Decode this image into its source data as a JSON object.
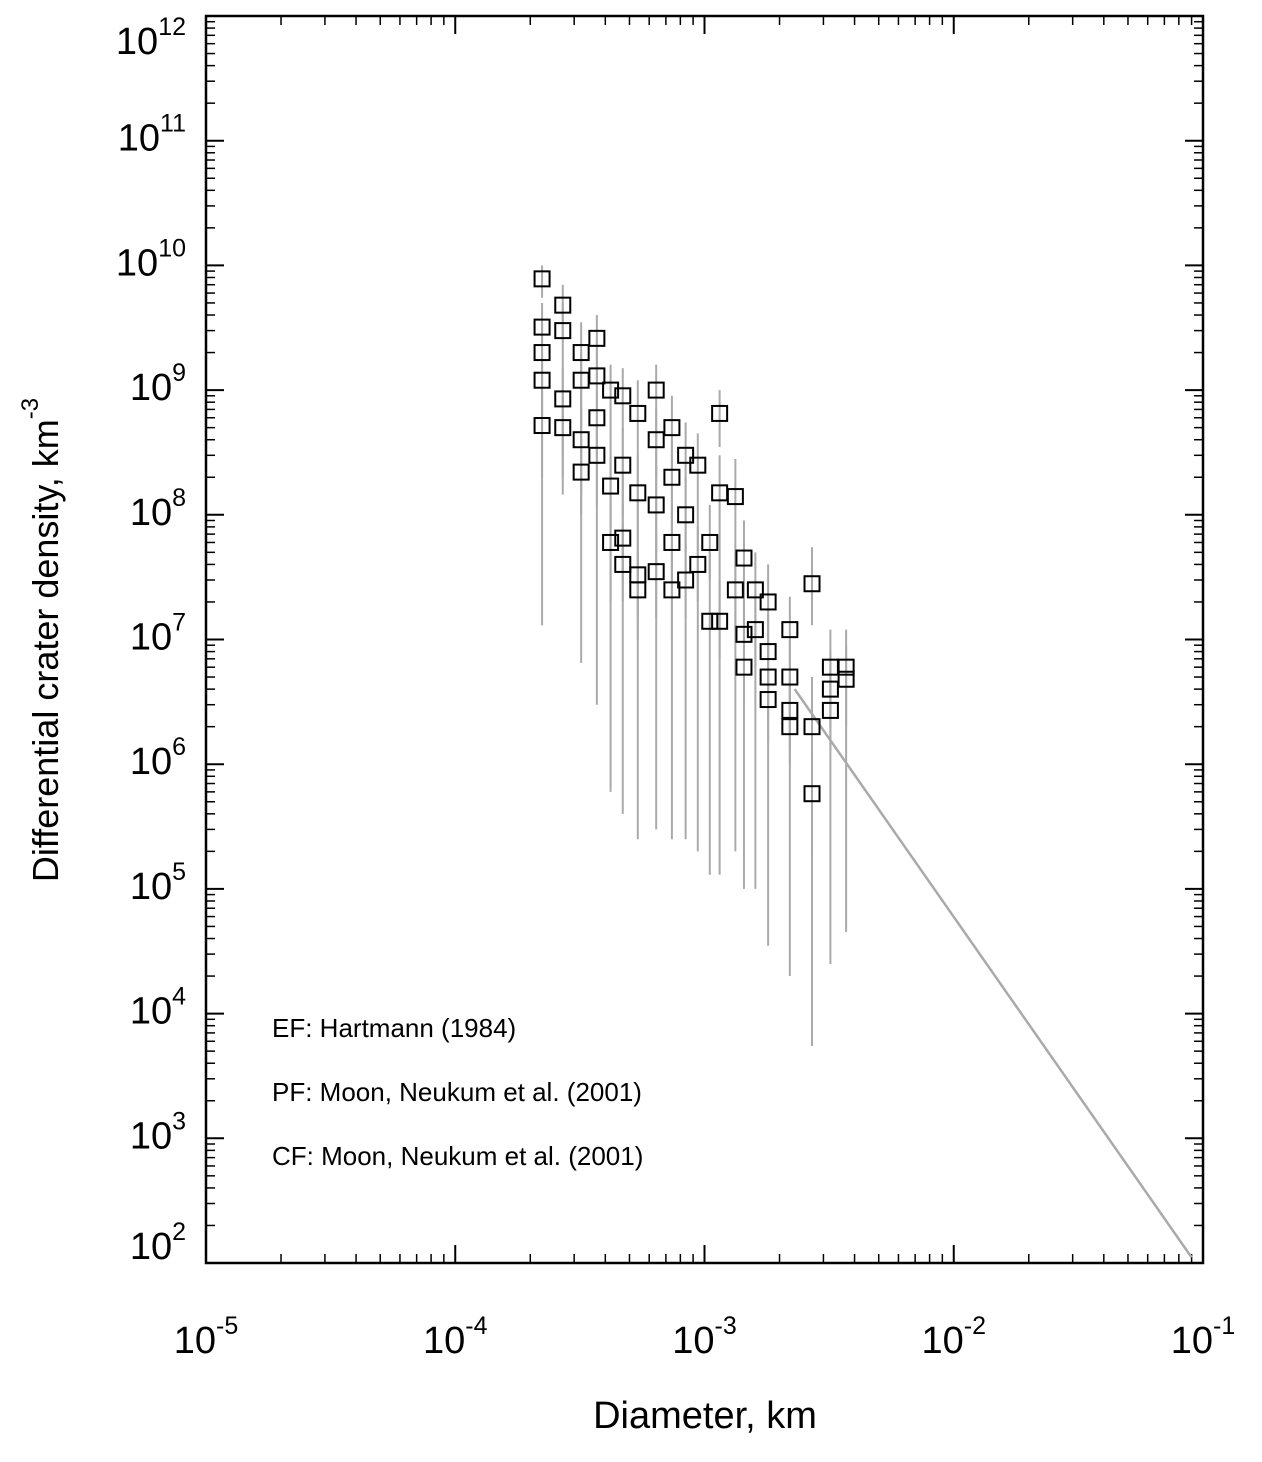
{
  "chart_data": {
    "type": "scatter",
    "xlabel": "Diameter, km",
    "ylabel": "Differential crater density, km",
    "ylabel_superscript": "-3",
    "log_x": true,
    "log_y": true,
    "xlim": [
      1e-05,
      0.1
    ],
    "ylim": [
      100,
      1000000000000
    ],
    "xticks": [
      {
        "value": 1e-05,
        "label": "10",
        "sup": "-5"
      },
      {
        "value": 0.0001,
        "label": "10",
        "sup": "-4"
      },
      {
        "value": 0.001,
        "label": "10",
        "sup": "-3"
      },
      {
        "value": 0.01,
        "label": "10",
        "sup": "-2"
      },
      {
        "value": 0.1,
        "label": "10",
        "sup": "-1"
      }
    ],
    "yticks": [
      {
        "value": 100,
        "label": "10",
        "sup": "2"
      },
      {
        "value": 1000,
        "label": "10",
        "sup": "3"
      },
      {
        "value": 10000,
        "label": "10",
        "sup": "4"
      },
      {
        "value": 100000,
        "label": "10",
        "sup": "5"
      },
      {
        "value": 1000000,
        "label": "10",
        "sup": "6"
      },
      {
        "value": 10000000,
        "label": "10",
        "sup": "7"
      },
      {
        "value": 100000000,
        "label": "10",
        "sup": "8"
      },
      {
        "value": 1000000000,
        "label": "10",
        "sup": "9"
      },
      {
        "value": 10000000000,
        "label": "10",
        "sup": "10"
      },
      {
        "value": 100000000000,
        "label": "10",
        "sup": "11"
      },
      {
        "value": 1000000000000,
        "label": "10",
        "sup": "12"
      }
    ],
    "annotations": [
      "EF: Hartmann (1984)",
      "PF: Moon, Neukum et al. (2001)",
      "CF: Moon, Neukum et al. (2001)"
    ],
    "series": [
      {
        "color": "#000000",
        "error_color": "#aaaaaa",
        "x": [
          0.000223,
          0.000223,
          0.000223,
          0.000223,
          0.000223,
          0.00027,
          0.00027,
          0.00027,
          0.00027,
          0.00032,
          0.00032,
          0.00032,
          0.00032,
          0.00037,
          0.00037,
          0.00037,
          0.00037,
          0.00042,
          0.00042,
          0.00042,
          0.00047,
          0.00047,
          0.00047,
          0.00047,
          0.00054,
          0.00054,
          0.00054,
          0.00054,
          0.00064,
          0.00064,
          0.00064,
          0.00064,
          0.00074,
          0.00074,
          0.00074,
          0.00074,
          0.00084,
          0.00084,
          0.00084,
          0.00094,
          0.00094,
          0.00105,
          0.00105,
          0.00115,
          0.00115,
          0.00115,
          0.00133,
          0.00133,
          0.00144,
          0.00144,
          0.00144,
          0.0016,
          0.0016,
          0.0018,
          0.0018,
          0.0018,
          0.0018,
          0.0022,
          0.0022,
          0.0022,
          0.0022,
          0.0027,
          0.0027,
          0.0027,
          0.0032,
          0.0032,
          0.0032,
          0.0037,
          0.0037
        ],
        "values": [
          7800000000,
          3200000000,
          2000000000,
          520000000,
          1200000000,
          4800000000,
          3000000000,
          850000000,
          500000000,
          2000000000,
          1200000000,
          400000000,
          220000000,
          2600000000,
          1300000000,
          600000000,
          300000000,
          1000000000,
          60000000,
          170000000,
          900000000,
          40000000,
          65000000,
          250000000,
          650000000,
          25000000,
          33000000,
          150000000,
          1000000000,
          400000000,
          35000000,
          120000000,
          500000000,
          25000000,
          200000000,
          60000000,
          300000000,
          30000000,
          100000000,
          250000000,
          40000000,
          14000000,
          60000000,
          650000000,
          150000000,
          14000000,
          140000000,
          25000000,
          45000000,
          11000000,
          6000000,
          25000000,
          12000000,
          20000000,
          8000000,
          3300000,
          5000000,
          12000000,
          5000000,
          2000000,
          2700000,
          28000000,
          2000000,
          580000,
          6000000,
          4000000,
          2700000,
          6000000,
          4800000
        ],
        "y_low": [
          5500000000,
          13000000,
          800000000,
          200000000,
          600000000,
          2500000000,
          145000000,
          300000000,
          200000000,
          6500000,
          500000000,
          150000000,
          100000000,
          1200000000,
          3000000,
          300000000,
          120000000,
          600000,
          20000000,
          80000000,
          400000,
          20000000,
          30000000,
          100000000,
          250000,
          10000000,
          15000000,
          60000000,
          300000,
          200000000,
          15000000,
          50000000,
          250000,
          10000000,
          80000000,
          30000000,
          250000,
          15000000,
          50000000,
          200000,
          20000000,
          130000,
          30000000,
          350000000,
          130000,
          7000000,
          200000,
          12000000,
          100000,
          5000000,
          3000000,
          100000,
          6000000,
          35000,
          4000000,
          1500000,
          2500000,
          20000,
          2500000,
          1000000,
          1300000,
          13000000,
          5500,
          200000,
          25000,
          2000000,
          1300000,
          45000,
          2000000
        ],
        "y_high": [
          10000000000,
          5000000000,
          3500000000,
          800000000,
          2000000000,
          7000000000,
          5000000000,
          1500000000,
          900000000,
          3500000000,
          2000000000,
          700000000,
          400000000,
          4000000000,
          2500000000,
          1000000000,
          500000000,
          1600000000,
          120000000,
          300000000,
          1500000000,
          80000000,
          120000000,
          500000000,
          1200000000,
          50000000,
          60000000,
          300000000,
          1600000000,
          700000000,
          70000000,
          250000000,
          900000000,
          50000000,
          400000000,
          120000000,
          550000000,
          60000000,
          200000000,
          450000000,
          80000000,
          50000000,
          120000000,
          1000000000,
          300000000,
          30000000,
          280000000,
          50000000,
          90000000,
          20000000,
          12000000,
          50000000,
          25000000,
          40000000,
          16000000,
          6000000,
          10000000,
          22000000,
          10000000,
          4000000,
          5000000,
          55000000,
          5000000,
          1200000,
          12000000,
          8000000,
          5000000,
          12000000,
          9000000
        ]
      }
    ],
    "fit_line": {
      "color": "#aaaaaa",
      "x": [
        0.0023,
        0.09
      ],
      "values": [
        4000000,
        111
      ]
    }
  }
}
